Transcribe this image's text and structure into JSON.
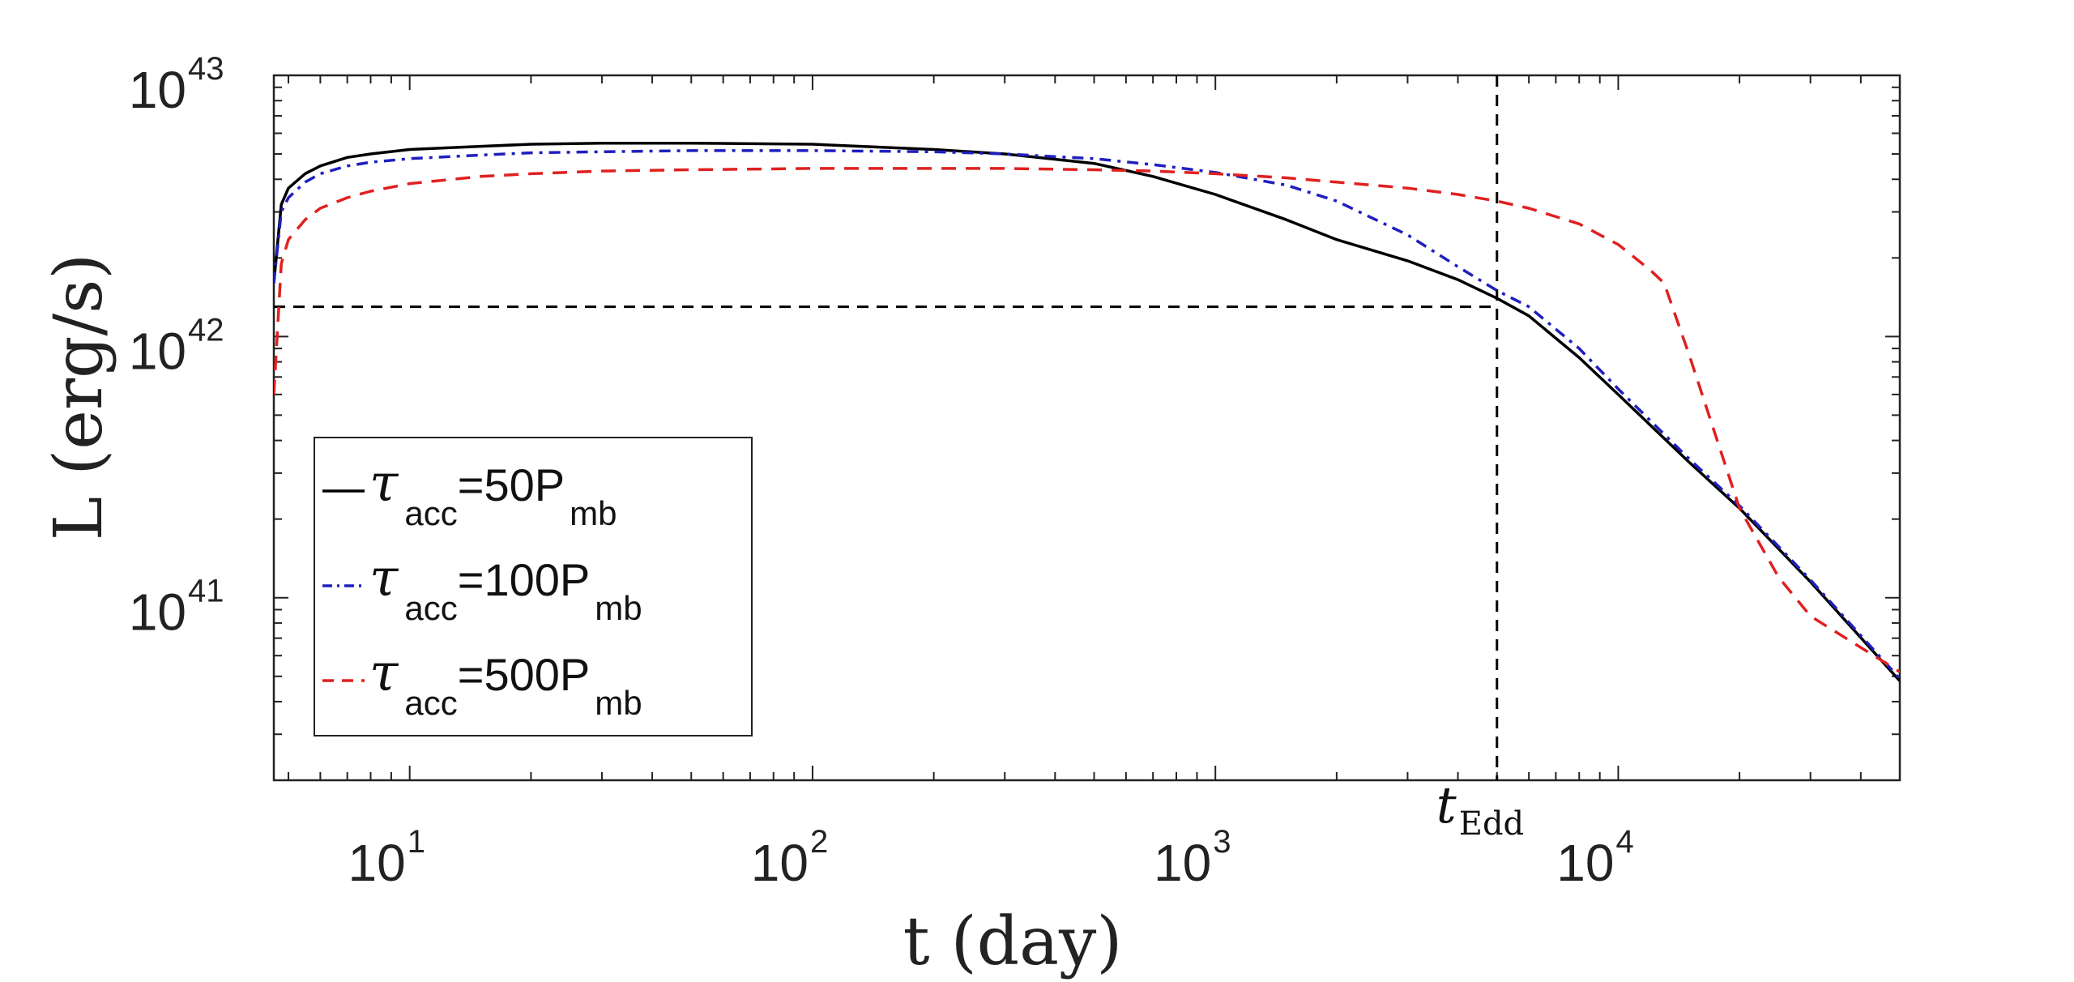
{
  "chart_data": {
    "type": "line",
    "title": "",
    "xlabel": "t (day)",
    "ylabel": "L (erg/s)",
    "xscale": "log",
    "yscale": "log",
    "xlim": [
      4.6,
      50000
    ],
    "ylim": [
      2e+40,
      1e+43
    ],
    "x_ticks": [
      {
        "base": "10",
        "exp": "1",
        "value": 10
      },
      {
        "base": "10",
        "exp": "2",
        "value": 100
      },
      {
        "base": "10",
        "exp": "3",
        "value": 1000
      },
      {
        "base": "10",
        "exp": "4",
        "value": 10000
      }
    ],
    "y_ticks": [
      {
        "base": "10",
        "exp": "41",
        "value": 1e+41
      },
      {
        "base": "10",
        "exp": "42",
        "value": 1e+42
      },
      {
        "base": "10",
        "exp": "43",
        "value": 1e+43
      }
    ],
    "series": [
      {
        "name": "tau_acc=50P_mb",
        "color": "#000000",
        "style": "solid",
        "x": [
          4.6,
          4.8,
          5.0,
          5.5,
          6,
          7,
          8,
          10,
          15,
          20,
          30,
          50,
          100,
          200,
          300,
          500,
          700,
          1000,
          1500,
          2000,
          3000,
          4000,
          5000,
          6000,
          8000,
          10000,
          15000,
          20000,
          30000,
          50000
        ],
        "y": [
          1.6e+42,
          3.2e+42,
          3.7e+42,
          4.2e+42,
          4.5e+42,
          4.85e+42,
          5e+42,
          5.2e+42,
          5.35e+42,
          5.45e+42,
          5.5e+42,
          5.5e+42,
          5.45e+42,
          5.2e+42,
          5e+42,
          4.6e+42,
          4.1e+42,
          3.5e+42,
          2.8e+42,
          2.35e+42,
          1.95e+42,
          1.65e+42,
          1.4e+42,
          1.2e+42,
          8.3e+41,
          6e+41,
          3.3e+41,
          2.2e+41,
          1.15e+41,
          4.8e+40
        ]
      },
      {
        "name": "tau_acc=100P_mb",
        "color": "#1f1fbf",
        "style": "dashdot",
        "x": [
          4.6,
          4.8,
          5.0,
          5.5,
          6,
          7,
          8,
          10,
          15,
          20,
          30,
          50,
          100,
          200,
          300,
          500,
          700,
          1000,
          1500,
          2000,
          3000,
          4000,
          5000,
          6000,
          8000,
          10000,
          15000,
          20000,
          30000,
          50000
        ],
        "y": [
          1.6e+42,
          3e+42,
          3.4e+42,
          3.9e+42,
          4.2e+42,
          4.5e+42,
          4.65e+42,
          4.8e+42,
          4.95e+42,
          5.05e+42,
          5.1e+42,
          5.15e+42,
          5.15e+42,
          5.1e+42,
          5e+42,
          4.8e+42,
          4.55e+42,
          4.25e+42,
          3.8e+42,
          3.3e+42,
          2.45e+42,
          1.85e+42,
          1.5e+42,
          1.3e+42,
          9e+41,
          6.3e+41,
          3.4e+41,
          2.25e+41,
          1.17e+41,
          4.9e+40
        ]
      },
      {
        "name": "tau_acc=500P_mb",
        "color": "#e02020",
        "style": "dashed",
        "x": [
          4.6,
          4.8,
          5.0,
          5.5,
          6,
          7,
          8,
          10,
          15,
          20,
          30,
          50,
          100,
          200,
          300,
          500,
          700,
          1000,
          1500,
          2000,
          3000,
          4000,
          5000,
          6000,
          8000,
          10000,
          12000,
          13000,
          15000,
          20000,
          25000,
          30000,
          50000
        ],
        "y": [
          6e+41,
          1.9e+42,
          2.35e+42,
          2.8e+42,
          3.1e+42,
          3.4e+42,
          3.6e+42,
          3.85e+42,
          4.1e+42,
          4.2e+42,
          4.3e+42,
          4.35e+42,
          4.4e+42,
          4.4e+42,
          4.4e+42,
          4.35e+42,
          4.3e+42,
          4.2e+42,
          4.05e+42,
          3.9e+42,
          3.7e+42,
          3.5e+42,
          3.3e+42,
          3.1e+42,
          2.7e+42,
          2.25e+42,
          1.8e+42,
          1.6e+42,
          8.5e+41,
          2.2e+41,
          1.2e+41,
          8.5e+40,
          5.2e+40
        ]
      }
    ],
    "reference_lines": {
      "vertical_x": 5000,
      "horizontal_y": 1.3e+42
    },
    "annotation": {
      "main": "t",
      "sub": "Edd"
    },
    "legend": {
      "position": "bottom-left",
      "entries": [
        {
          "symbol": "τ",
          "sub1": "acc",
          "mid": "=50P",
          "sub2": "mb",
          "color": "#000000",
          "style": "solid"
        },
        {
          "symbol": "τ",
          "sub1": "acc",
          "mid": "=100P",
          "sub2": "mb",
          "color": "#1f1fbf",
          "style": "dashdot"
        },
        {
          "symbol": "τ",
          "sub1": "acc",
          "mid": "=500P",
          "sub2": "mb",
          "color": "#e02020",
          "style": "dashed"
        }
      ]
    }
  }
}
